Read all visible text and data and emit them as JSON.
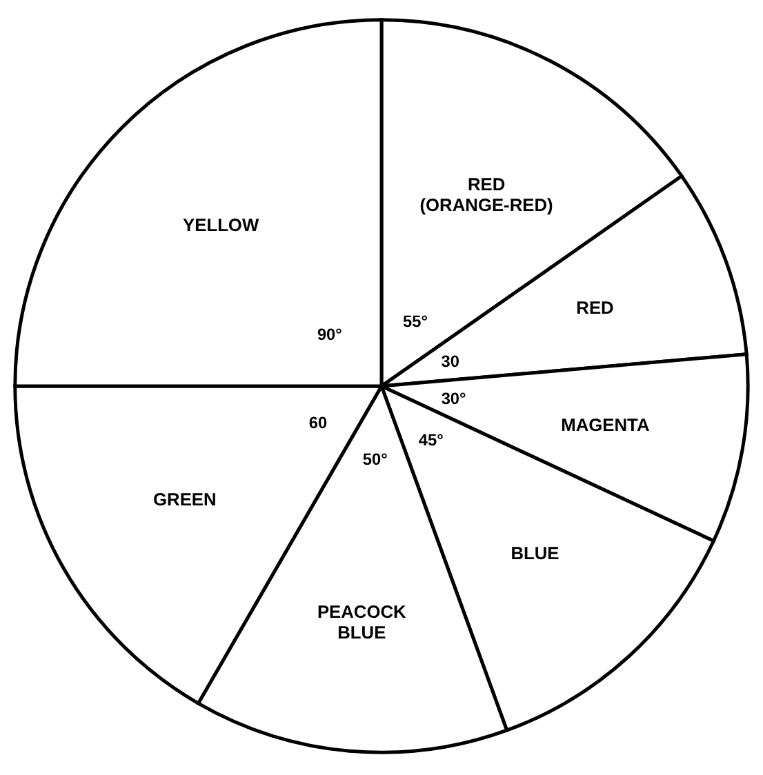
{
  "chart_data": {
    "type": "pie",
    "categories": [
      "RED (ORANGE-RED)",
      "RED",
      "MAGENTA",
      "BLUE",
      "PEACOCK BLUE",
      "GREEN",
      "YELLOW"
    ],
    "values": [
      55,
      30,
      30,
      45,
      50,
      60,
      90
    ],
    "value_labels": [
      "55°",
      "30",
      "30°",
      "45°",
      "50°",
      "60",
      "90°"
    ],
    "colors": [
      "#ffffff",
      "#ffffff",
      "#ffffff",
      "#ffffff",
      "#ffffff",
      "#ffffff",
      "#ffffff"
    ],
    "legend": false
  }
}
